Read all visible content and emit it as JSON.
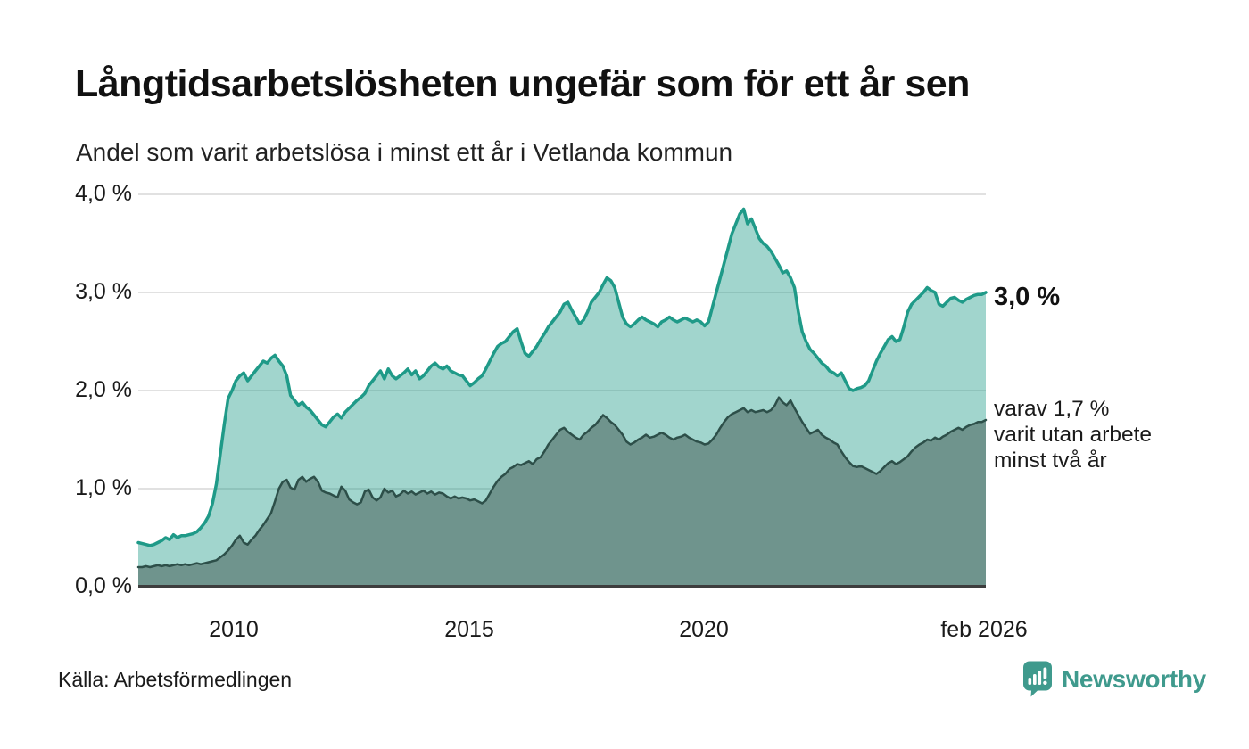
{
  "header": {
    "title": "Långtidsarbetslösheten ungefär som för ett år sen",
    "subtitle": "Andel som varit arbetslösa i minst ett år i Vetlanda kommun"
  },
  "footer": {
    "source": "Källa: Arbetsförmedlingen",
    "brand": "Newsworthy"
  },
  "colors": {
    "accent_teal": "#1f9a88",
    "light_fill": "rgba(31,154,136,0.42)",
    "dark_line": "#2d4f49",
    "dark_fill": "#6f948d",
    "grid": "#e1e1e1",
    "axis": "#3d3d3d",
    "brand_teal": "#3f9a8d"
  },
  "chart_data": {
    "type": "area",
    "title": "Långtidsarbetslösheten ungefär som för ett år sen",
    "subtitle": "Andel som varit arbetslösa i minst ett år i Vetlanda kommun",
    "unit": "%",
    "x_start": "jan 2008",
    "x_end": "feb 2026",
    "x_step": "1 month",
    "x_ticks": [
      "2010",
      "2015",
      "2020",
      "feb 2026"
    ],
    "y_ticks": [
      "4,0 %",
      "3,0 %",
      "2,0 %",
      "1,0 %",
      "0,0 %"
    ],
    "ylim": [
      0,
      4.0
    ],
    "grid": "horizontal",
    "legend_position": "right-of-line",
    "series": [
      {
        "name": "Andel som varit arbetslösa i minst ett år",
        "end_label": "3,0 %",
        "latest_value": 3.0,
        "line_color": "#1f9a88",
        "fill_color": "rgba(31,154,136,0.42)",
        "line_width": 3.5,
        "values": [
          0.45,
          0.44,
          0.43,
          0.42,
          0.43,
          0.45,
          0.47,
          0.5,
          0.48,
          0.53,
          0.5,
          0.52,
          0.52,
          0.53,
          0.54,
          0.56,
          0.6,
          0.65,
          0.72,
          0.85,
          1.05,
          1.35,
          1.65,
          1.92,
          2.0,
          2.1,
          2.15,
          2.18,
          2.1,
          2.15,
          2.2,
          2.25,
          2.3,
          2.28,
          2.33,
          2.36,
          2.3,
          2.25,
          2.15,
          1.95,
          1.9,
          1.85,
          1.88,
          1.83,
          1.8,
          1.75,
          1.7,
          1.65,
          1.63,
          1.68,
          1.73,
          1.76,
          1.72,
          1.78,
          1.82,
          1.86,
          1.9,
          1.93,
          1.97,
          2.05,
          2.1,
          2.15,
          2.2,
          2.12,
          2.22,
          2.15,
          2.12,
          2.15,
          2.18,
          2.22,
          2.16,
          2.2,
          2.12,
          2.15,
          2.2,
          2.25,
          2.28,
          2.24,
          2.22,
          2.25,
          2.2,
          2.18,
          2.16,
          2.15,
          2.1,
          2.05,
          2.08,
          2.12,
          2.15,
          2.22,
          2.3,
          2.38,
          2.45,
          2.48,
          2.5,
          2.55,
          2.6,
          2.63,
          2.5,
          2.38,
          2.35,
          2.4,
          2.45,
          2.52,
          2.58,
          2.65,
          2.7,
          2.75,
          2.8,
          2.88,
          2.9,
          2.82,
          2.75,
          2.68,
          2.72,
          2.8,
          2.9,
          2.95,
          3.0,
          3.08,
          3.15,
          3.12,
          3.05,
          2.9,
          2.75,
          2.68,
          2.65,
          2.68,
          2.72,
          2.75,
          2.72,
          2.7,
          2.68,
          2.65,
          2.7,
          2.72,
          2.75,
          2.72,
          2.7,
          2.72,
          2.74,
          2.72,
          2.7,
          2.72,
          2.7,
          2.66,
          2.7,
          2.85,
          3.0,
          3.15,
          3.3,
          3.45,
          3.6,
          3.7,
          3.8,
          3.85,
          3.7,
          3.75,
          3.65,
          3.55,
          3.5,
          3.47,
          3.42,
          3.35,
          3.28,
          3.2,
          3.22,
          3.15,
          3.05,
          2.8,
          2.6,
          2.5,
          2.42,
          2.38,
          2.33,
          2.28,
          2.25,
          2.2,
          2.18,
          2.15,
          2.18,
          2.1,
          2.02,
          2.0,
          2.02,
          2.03,
          2.05,
          2.1,
          2.2,
          2.3,
          2.38,
          2.45,
          2.52,
          2.55,
          2.5,
          2.52,
          2.65,
          2.8,
          2.88,
          2.92,
          2.96,
          3.0,
          3.05,
          3.02,
          3.0,
          2.88,
          2.86,
          2.9,
          2.94,
          2.95,
          2.92,
          2.9,
          2.93,
          2.95,
          2.97,
          2.98,
          2.98,
          3.0
        ]
      },
      {
        "name": "varav varit utan arbete minst två år",
        "end_label_lines": [
          "varav 1,7 %",
          "varit utan arbete",
          "minst två år"
        ],
        "latest_value": 1.7,
        "line_color": "#2d4f49",
        "fill_color": "#6f948d",
        "line_width": 2.5,
        "values": [
          0.2,
          0.2,
          0.21,
          0.2,
          0.21,
          0.22,
          0.21,
          0.22,
          0.21,
          0.22,
          0.23,
          0.22,
          0.23,
          0.22,
          0.23,
          0.24,
          0.23,
          0.24,
          0.25,
          0.26,
          0.27,
          0.3,
          0.33,
          0.37,
          0.42,
          0.48,
          0.52,
          0.45,
          0.43,
          0.48,
          0.52,
          0.58,
          0.63,
          0.69,
          0.75,
          0.87,
          1.0,
          1.07,
          1.09,
          1.01,
          0.99,
          1.09,
          1.12,
          1.07,
          1.1,
          1.12,
          1.07,
          0.98,
          0.96,
          0.95,
          0.93,
          0.91,
          1.02,
          0.98,
          0.89,
          0.86,
          0.84,
          0.86,
          0.97,
          0.99,
          0.91,
          0.88,
          0.91,
          1.0,
          0.96,
          0.98,
          0.92,
          0.94,
          0.98,
          0.95,
          0.97,
          0.94,
          0.96,
          0.98,
          0.95,
          0.97,
          0.94,
          0.96,
          0.95,
          0.92,
          0.9,
          0.92,
          0.9,
          0.91,
          0.9,
          0.88,
          0.89,
          0.87,
          0.85,
          0.88,
          0.95,
          1.02,
          1.08,
          1.12,
          1.15,
          1.2,
          1.22,
          1.25,
          1.24,
          1.26,
          1.28,
          1.25,
          1.3,
          1.32,
          1.38,
          1.45,
          1.5,
          1.55,
          1.6,
          1.62,
          1.58,
          1.55,
          1.52,
          1.5,
          1.55,
          1.58,
          1.62,
          1.65,
          1.7,
          1.75,
          1.72,
          1.68,
          1.65,
          1.6,
          1.55,
          1.48,
          1.45,
          1.47,
          1.5,
          1.52,
          1.55,
          1.52,
          1.53,
          1.55,
          1.57,
          1.55,
          1.52,
          1.5,
          1.52,
          1.53,
          1.55,
          1.52,
          1.5,
          1.48,
          1.47,
          1.45,
          1.46,
          1.5,
          1.55,
          1.62,
          1.68,
          1.73,
          1.76,
          1.78,
          1.8,
          1.82,
          1.78,
          1.8,
          1.78,
          1.79,
          1.8,
          1.78,
          1.8,
          1.85,
          1.93,
          1.88,
          1.85,
          1.9,
          1.82,
          1.75,
          1.68,
          1.62,
          1.56,
          1.58,
          1.6,
          1.55,
          1.52,
          1.5,
          1.47,
          1.45,
          1.38,
          1.32,
          1.27,
          1.23,
          1.22,
          1.23,
          1.21,
          1.19,
          1.17,
          1.15,
          1.18,
          1.22,
          1.26,
          1.28,
          1.25,
          1.27,
          1.3,
          1.33,
          1.38,
          1.42,
          1.45,
          1.47,
          1.5,
          1.49,
          1.52,
          1.5,
          1.53,
          1.55,
          1.58,
          1.6,
          1.62,
          1.6,
          1.63,
          1.65,
          1.66,
          1.68,
          1.68,
          1.7
        ]
      }
    ]
  }
}
